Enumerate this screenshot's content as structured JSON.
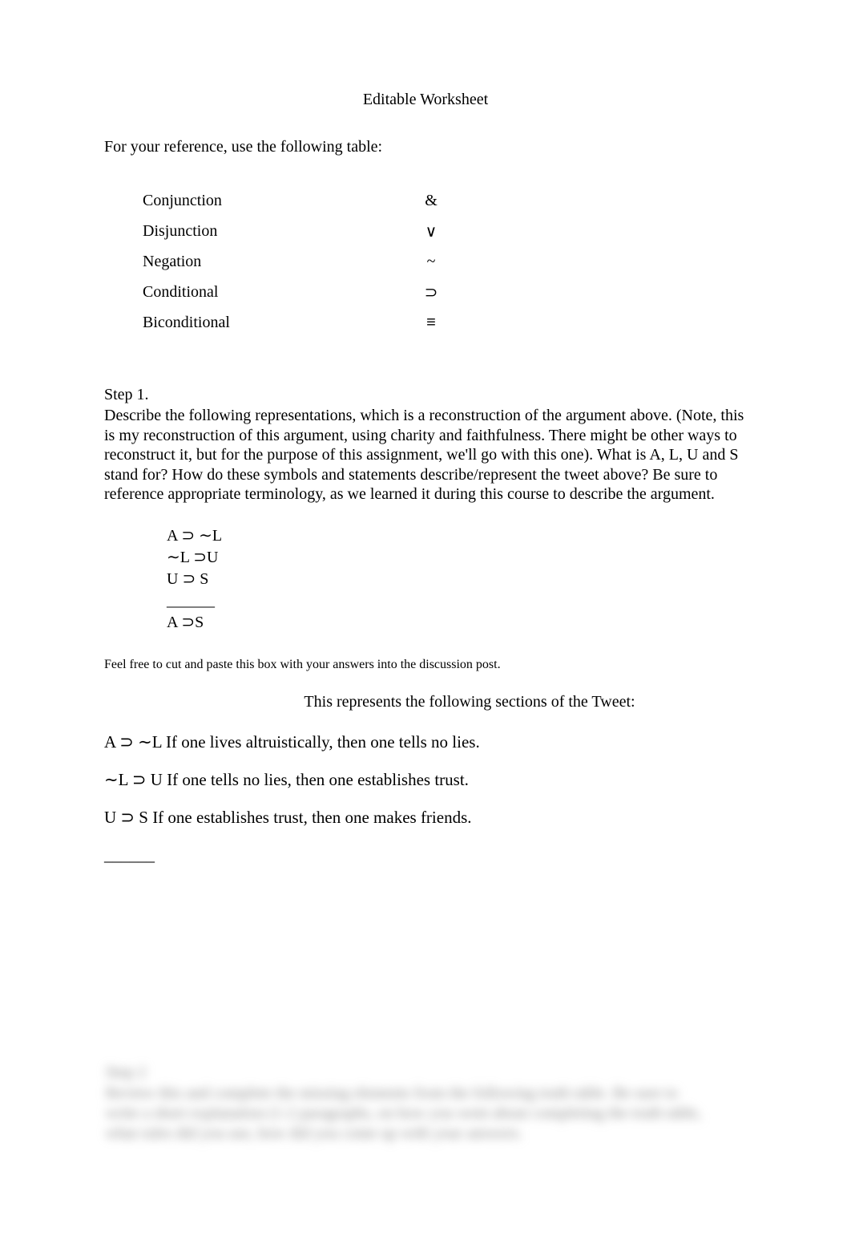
{
  "title": "Editable Worksheet",
  "intro": "For your reference, use the following table:",
  "table": {
    "rows": [
      {
        "label": "Conjunction",
        "symbol": "&"
      },
      {
        "label": "Disjunction",
        "symbol": "∨"
      },
      {
        "label": "Negation",
        "symbol": "~"
      },
      {
        "label": "Conditional",
        "symbol": "⊃"
      },
      {
        "label": "Biconditional",
        "symbol": "≡"
      }
    ]
  },
  "step1": {
    "heading": "Step 1.",
    "description": "Describe the following representations, which is a reconstruction of the argument above. (Note, this is my reconstruction of this argument, using charity and faithfulness. There might be other ways to reconstruct it, but for the purpose of this assignment, we'll go with this one). What is A, L, U and S stand for? How do these symbols and statements describe/represent the tweet above?   Be sure to reference appropriate terminology, as we learned it during this course to describe the argument."
  },
  "argument": {
    "lines": [
      "A  ⊃ ∼L",
      "∼L  ⊃U",
      "U  ⊃ S"
    ],
    "divider": "______",
    "conclusion": "A  ⊃S"
  },
  "pasteInstruction": "Feel free to cut and paste this box with your answers into the discussion post.",
  "representsHeading": "This represents the following sections of the Tweet:",
  "interpretations": [
    "A   ⊃ ∼L If one lives altruistically, then one tells no lies.",
    "∼L  ⊃ U If one tells no lies, then one establishes trust.",
    "U  ⊃ S If one establishes trust, then one makes friends."
  ],
  "interpDivider": "______",
  "blurred": {
    "line1": " ",
    "step": "Step 2",
    "body1": "Review this and complete the missing elements from the following truth table.  Be sure to",
    "body2": "write a short explanation (1-2 paragraphs, on how you went about completing the truth table,",
    "body3": "what rules did you use, how did you come up with your answers."
  },
  "colors": {
    "background": "#ffffff",
    "text": "#000000",
    "blurred_text": "#888888"
  }
}
